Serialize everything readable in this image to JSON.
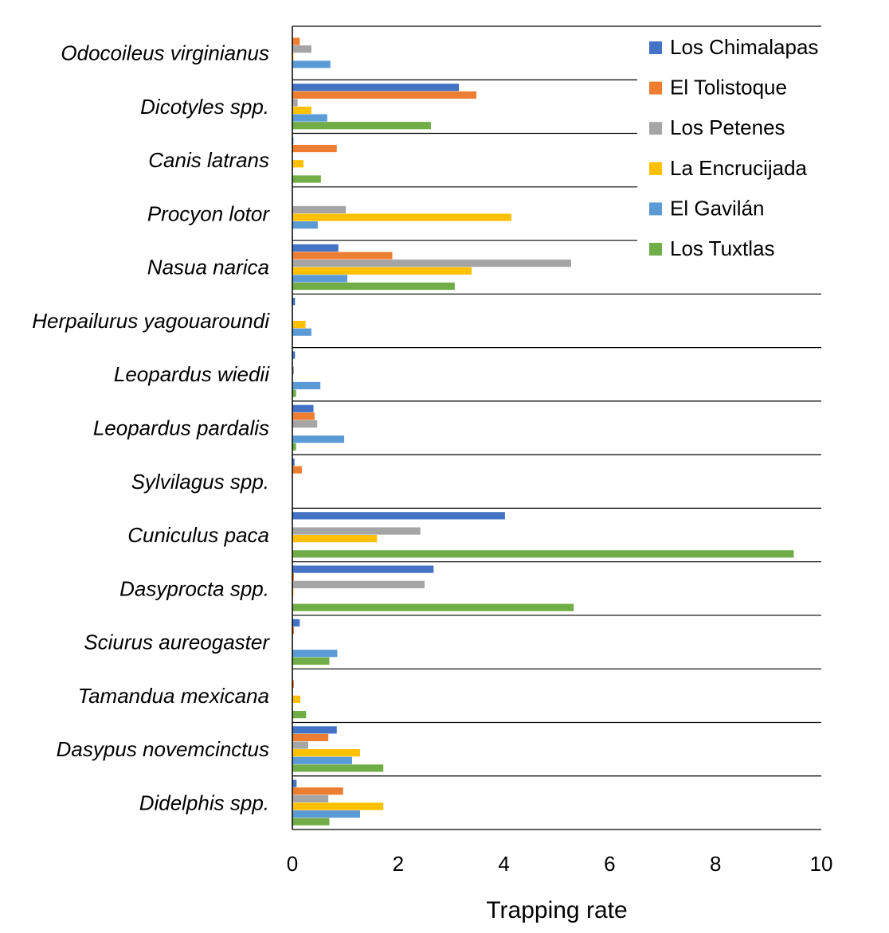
{
  "chart_data": {
    "type": "bar",
    "orientation": "horizontal",
    "categories": [
      "Odocoileus virginianus",
      "Dicotyles spp.",
      "Canis latrans",
      "Procyon lotor",
      "Nasua narica",
      "Herpailurus yagouaroundi",
      "Leopardus wiedii",
      "Leopardus pardalis",
      "Sylvilagus spp.",
      "Cuniculus paca",
      "Dasyprocta spp.",
      "Sciurus aureogaster",
      "Tamandua mexicana",
      "Dasypus novemcinctus",
      "Didelphis spp."
    ],
    "series": [
      {
        "name": "Los Chimalapas",
        "color": "#4472C4",
        "values": [
          0,
          3.15,
          0.02,
          0,
          0.87,
          0.05,
          0.05,
          0.4,
          0.04,
          4.02,
          2.67,
          0.14,
          0,
          0.84,
          0.08
        ]
      },
      {
        "name": "El Tolistoque",
        "color": "#ED7D31",
        "values": [
          0.14,
          3.48,
          0.84,
          0,
          1.89,
          0,
          0,
          0.42,
          0.18,
          0,
          0.03,
          0.03,
          0.03,
          0.68,
          0.96
        ]
      },
      {
        "name": "Los Petenes",
        "color": "#A5A5A5",
        "values": [
          0.36,
          0.1,
          0,
          1.01,
          5.27,
          0,
          0.03,
          0.47,
          0,
          2.42,
          2.5,
          0,
          0,
          0.3,
          0.68
        ]
      },
      {
        "name": "La Encrucijada",
        "color": "#FFC000",
        "values": [
          0.02,
          0.36,
          0.21,
          4.14,
          3.39,
          0.25,
          0,
          0,
          0,
          1.6,
          0.02,
          0,
          0.15,
          1.28,
          1.72
        ]
      },
      {
        "name": "El Gavilán",
        "color": "#5B9BD5",
        "values": [
          0.72,
          0.66,
          0,
          0.48,
          1.04,
          0.36,
          0.53,
          0.98,
          0,
          0,
          0,
          0.85,
          0,
          1.13,
          1.28
        ]
      },
      {
        "name": "Los Tuxtlas",
        "color": "#70AD47",
        "values": [
          0,
          2.62,
          0.54,
          0,
          3.07,
          0,
          0.07,
          0.07,
          0,
          9.48,
          5.32,
          0.7,
          0.26,
          1.72,
          0.7
        ]
      }
    ],
    "xlabel": "Trapping rate",
    "ylabel": "",
    "xlim": [
      0,
      10
    ],
    "xticks": [
      0,
      2,
      4,
      6,
      8,
      10
    ],
    "grid": "horizontal category separators",
    "legend_position": "top-right"
  }
}
